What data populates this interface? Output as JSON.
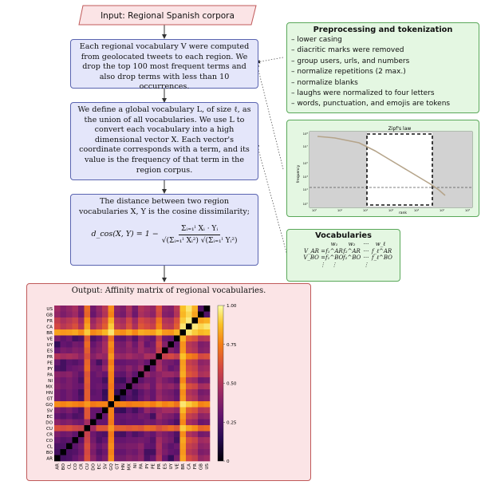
{
  "input": {
    "label": "Input: Regional Spanish corpora"
  },
  "step1": {
    "text": "Each regional vocabulary V were computed from geolocated tweets to each region. We drop the top 100 most frequent terms and also drop terms with less than 10 occurrences."
  },
  "step2": {
    "text": "We define a global vocabulary L, of size ℓ, as the union of all vocabularies. We use L to convert each vocabulary into a high dimensional vector X. Each vector's coordinate corresponds with a term, and its value is the frequency of that term in the region corpus."
  },
  "step3": {
    "text": "The distance between two region vocabularies X, Y is the cosine dissimilarity;",
    "formula_lhs": "d_cos(X, Y) = 1 −",
    "numerator": "Σᵢ₌₁ˡ Xᵢ · Yᵢ",
    "denominator": "√(Σᵢ₌₁ˡ Xᵢ²) √(Σᵢ₌₁ˡ Yᵢ²)"
  },
  "preprocessing": {
    "title": "Preprocessing and tokenization",
    "items": [
      "– lower casing",
      "– diacritic marks were removed",
      "– group users, urls, and numbers",
      "– normalize repetitions (2 max.)",
      "– normalize blanks",
      "– laughs were normalized to four letters",
      "– words, punctuation, and emojis are tokens"
    ]
  },
  "zipf": {
    "title": "Zipf's law",
    "ylabel": "frequency",
    "xlabel": "rank",
    "xticks": [
      "10⁰",
      "10¹",
      "10²",
      "10³",
      "10⁴",
      "10⁵",
      "10⁶"
    ],
    "yticks": [
      "10⁸",
      "10⁷",
      "10⁵",
      "10³",
      "10¹",
      "10⁰"
    ]
  },
  "vocabularies": {
    "title": "Vocabularies",
    "header": [
      "w₁",
      "w₂",
      "···",
      "w_ℓ"
    ],
    "rows": [
      {
        "label": "V_AR =",
        "cells": [
          "f₁^AR",
          "f₂^AR",
          "···",
          "f_ℓ^AR"
        ]
      },
      {
        "label": "V_BO =",
        "cells": [
          "f₁^BO",
          "f₂^BO",
          "···",
          "f_ℓ^BO"
        ]
      },
      {
        "label": "⋮",
        "cells": [
          "⋮",
          "",
          "⋮",
          ""
        ]
      }
    ]
  },
  "output": {
    "title": "Output: Affinity matrix of regional vocabularies.",
    "rows_top_down": [
      "US",
      "GB",
      "FR",
      "CA",
      "BR",
      "VE",
      "UY",
      "ES",
      "PR",
      "PE",
      "PY",
      "PA",
      "NI",
      "MX",
      "HN",
      "GT",
      "GQ",
      "SV",
      "EC",
      "DO",
      "CU",
      "CR",
      "CO",
      "CL",
      "BO",
      "AR"
    ],
    "cols_left_right": [
      "AR",
      "BO",
      "CL",
      "CO",
      "CR",
      "CU",
      "DO",
      "EC",
      "SV",
      "GQ",
      "GT",
      "HN",
      "MX",
      "NI",
      "PA",
      "PY",
      "PE",
      "PR",
      "ES",
      "UY",
      "VE",
      "BR",
      "CA",
      "FR",
      "GB",
      "US"
    ],
    "colorbar_ticks": [
      "1.00",
      "0.75",
      "0.50",
      "0.25",
      "0"
    ]
  },
  "chart_data": {
    "type": "heatmap",
    "title": "Output: Affinity matrix of regional vocabularies.",
    "x": [
      "AR",
      "BO",
      "CL",
      "CO",
      "CR",
      "CU",
      "DO",
      "EC",
      "SV",
      "GQ",
      "GT",
      "HN",
      "MX",
      "NI",
      "PA",
      "PY",
      "PE",
      "PR",
      "ES",
      "UY",
      "VE",
      "BR",
      "CA",
      "FR",
      "GB",
      "US"
    ],
    "y_top_to_bottom": [
      "US",
      "GB",
      "FR",
      "CA",
      "BR",
      "VE",
      "UY",
      "ES",
      "PR",
      "PE",
      "PY",
      "PA",
      "NI",
      "MX",
      "HN",
      "GT",
      "GQ",
      "SV",
      "EC",
      "DO",
      "CU",
      "CR",
      "CO",
      "CL",
      "BO",
      "AR"
    ],
    "colorbar_range": [
      0,
      1
    ],
    "values": [
      [
        0.45,
        0.38,
        0.42,
        0.47,
        0.35,
        0.7,
        0.33,
        0.42,
        0.52,
        0.78,
        0.4,
        0.36,
        0.48,
        0.34,
        0.5,
        0.46,
        0.42,
        0.62,
        0.4,
        0.38,
        0.52,
        0.88,
        0.95,
        0.85,
        0.25,
        0.0
      ],
      [
        0.42,
        0.36,
        0.4,
        0.45,
        0.33,
        0.68,
        0.31,
        0.4,
        0.5,
        0.76,
        0.38,
        0.34,
        0.46,
        0.32,
        0.48,
        0.44,
        0.4,
        0.6,
        0.38,
        0.36,
        0.5,
        0.86,
        0.92,
        0.82,
        0.0,
        0.25
      ],
      [
        0.55,
        0.48,
        0.52,
        0.57,
        0.45,
        0.78,
        0.43,
        0.52,
        0.62,
        0.85,
        0.5,
        0.46,
        0.58,
        0.44,
        0.6,
        0.56,
        0.52,
        0.72,
        0.5,
        0.48,
        0.62,
        0.9,
        0.96,
        0.0,
        0.82,
        0.85
      ],
      [
        0.6,
        0.52,
        0.56,
        0.62,
        0.5,
        0.82,
        0.47,
        0.56,
        0.66,
        0.9,
        0.54,
        0.5,
        0.62,
        0.48,
        0.64,
        0.6,
        0.56,
        0.76,
        0.54,
        0.52,
        0.66,
        0.95,
        0.0,
        0.96,
        0.92,
        0.95
      ],
      [
        0.82,
        0.8,
        0.81,
        0.83,
        0.78,
        0.9,
        0.77,
        0.8,
        0.86,
        0.95,
        0.8,
        0.78,
        0.83,
        0.77,
        0.84,
        0.82,
        0.81,
        0.88,
        0.8,
        0.79,
        0.85,
        0.0,
        0.95,
        0.9,
        0.86,
        0.88
      ],
      [
        0.35,
        0.28,
        0.32,
        0.22,
        0.25,
        0.65,
        0.24,
        0.3,
        0.42,
        0.72,
        0.3,
        0.28,
        0.36,
        0.26,
        0.4,
        0.34,
        0.3,
        0.55,
        0.32,
        0.3,
        0.0,
        0.85,
        0.66,
        0.62,
        0.5,
        0.52
      ],
      [
        0.18,
        0.3,
        0.28,
        0.34,
        0.32,
        0.7,
        0.3,
        0.36,
        0.46,
        0.78,
        0.36,
        0.34,
        0.42,
        0.32,
        0.44,
        0.3,
        0.34,
        0.6,
        0.38,
        0.0,
        0.3,
        0.79,
        0.52,
        0.48,
        0.36,
        0.38
      ],
      [
        0.3,
        0.36,
        0.34,
        0.38,
        0.36,
        0.66,
        0.34,
        0.38,
        0.46,
        0.76,
        0.38,
        0.36,
        0.4,
        0.36,
        0.44,
        0.38,
        0.36,
        0.56,
        0.0,
        0.38,
        0.32,
        0.8,
        0.54,
        0.5,
        0.38,
        0.4
      ],
      [
        0.5,
        0.46,
        0.48,
        0.46,
        0.4,
        0.62,
        0.38,
        0.44,
        0.42,
        0.8,
        0.44,
        0.42,
        0.46,
        0.42,
        0.4,
        0.48,
        0.46,
        0.0,
        0.56,
        0.6,
        0.55,
        0.88,
        0.76,
        0.72,
        0.6,
        0.62
      ],
      [
        0.3,
        0.22,
        0.28,
        0.26,
        0.3,
        0.68,
        0.32,
        0.22,
        0.36,
        0.75,
        0.3,
        0.3,
        0.32,
        0.32,
        0.36,
        0.3,
        0.0,
        0.46,
        0.36,
        0.34,
        0.3,
        0.81,
        0.56,
        0.52,
        0.4,
        0.42
      ],
      [
        0.24,
        0.22,
        0.3,
        0.32,
        0.34,
        0.7,
        0.34,
        0.32,
        0.42,
        0.78,
        0.36,
        0.34,
        0.4,
        0.34,
        0.42,
        0.0,
        0.3,
        0.48,
        0.38,
        0.3,
        0.34,
        0.82,
        0.6,
        0.56,
        0.44,
        0.46
      ],
      [
        0.4,
        0.38,
        0.4,
        0.34,
        0.28,
        0.64,
        0.3,
        0.34,
        0.3,
        0.76,
        0.3,
        0.28,
        0.36,
        0.28,
        0.0,
        0.42,
        0.36,
        0.4,
        0.44,
        0.44,
        0.4,
        0.84,
        0.64,
        0.6,
        0.48,
        0.5
      ],
      [
        0.36,
        0.32,
        0.36,
        0.32,
        0.24,
        0.66,
        0.3,
        0.3,
        0.22,
        0.76,
        0.22,
        0.2,
        0.32,
        0.0,
        0.28,
        0.34,
        0.32,
        0.42,
        0.36,
        0.32,
        0.26,
        0.77,
        0.48,
        0.44,
        0.32,
        0.34
      ],
      [
        0.38,
        0.34,
        0.36,
        0.32,
        0.3,
        0.64,
        0.3,
        0.32,
        0.28,
        0.74,
        0.26,
        0.28,
        0.0,
        0.32,
        0.36,
        0.4,
        0.32,
        0.46,
        0.4,
        0.42,
        0.36,
        0.83,
        0.62,
        0.58,
        0.46,
        0.48
      ],
      [
        0.34,
        0.3,
        0.34,
        0.3,
        0.22,
        0.66,
        0.28,
        0.3,
        0.18,
        0.76,
        0.18,
        0.0,
        0.28,
        0.2,
        0.28,
        0.34,
        0.3,
        0.42,
        0.36,
        0.34,
        0.28,
        0.78,
        0.5,
        0.46,
        0.34,
        0.36
      ],
      [
        0.34,
        0.3,
        0.34,
        0.3,
        0.24,
        0.66,
        0.3,
        0.3,
        0.2,
        0.76,
        0.0,
        0.18,
        0.26,
        0.22,
        0.3,
        0.36,
        0.3,
        0.44,
        0.38,
        0.36,
        0.3,
        0.8,
        0.54,
        0.5,
        0.38,
        0.4
      ],
      [
        0.78,
        0.76,
        0.78,
        0.76,
        0.74,
        0.8,
        0.74,
        0.76,
        0.76,
        0.0,
        0.76,
        0.76,
        0.74,
        0.76,
        0.76,
        0.78,
        0.75,
        0.8,
        0.76,
        0.78,
        0.72,
        0.95,
        0.9,
        0.85,
        0.76,
        0.78
      ],
      [
        0.36,
        0.32,
        0.36,
        0.3,
        0.24,
        0.64,
        0.3,
        0.3,
        0.0,
        0.76,
        0.2,
        0.18,
        0.28,
        0.22,
        0.3,
        0.42,
        0.36,
        0.42,
        0.46,
        0.46,
        0.42,
        0.86,
        0.66,
        0.62,
        0.5,
        0.52
      ],
      [
        0.3,
        0.26,
        0.3,
        0.24,
        0.26,
        0.64,
        0.3,
        0.0,
        0.3,
        0.76,
        0.3,
        0.3,
        0.32,
        0.3,
        0.34,
        0.32,
        0.22,
        0.44,
        0.38,
        0.36,
        0.3,
        0.8,
        0.56,
        0.52,
        0.4,
        0.42
      ],
      [
        0.4,
        0.36,
        0.38,
        0.34,
        0.32,
        0.46,
        0.0,
        0.3,
        0.3,
        0.74,
        0.3,
        0.28,
        0.3,
        0.3,
        0.3,
        0.34,
        0.32,
        0.38,
        0.34,
        0.3,
        0.24,
        0.77,
        0.47,
        0.43,
        0.31,
        0.33
      ],
      [
        0.62,
        0.6,
        0.62,
        0.58,
        0.56,
        0.0,
        0.46,
        0.64,
        0.64,
        0.8,
        0.66,
        0.66,
        0.64,
        0.66,
        0.64,
        0.7,
        0.68,
        0.62,
        0.66,
        0.7,
        0.65,
        0.9,
        0.82,
        0.78,
        0.68,
        0.7
      ],
      [
        0.36,
        0.32,
        0.34,
        0.28,
        0.0,
        0.56,
        0.32,
        0.26,
        0.24,
        0.74,
        0.24,
        0.22,
        0.3,
        0.24,
        0.28,
        0.34,
        0.3,
        0.4,
        0.36,
        0.32,
        0.25,
        0.78,
        0.5,
        0.45,
        0.33,
        0.35
      ],
      [
        0.3,
        0.26,
        0.28,
        0.0,
        0.28,
        0.58,
        0.34,
        0.24,
        0.3,
        0.76,
        0.3,
        0.3,
        0.32,
        0.32,
        0.34,
        0.32,
        0.26,
        0.46,
        0.38,
        0.34,
        0.22,
        0.83,
        0.62,
        0.57,
        0.45,
        0.47
      ],
      [
        0.24,
        0.24,
        0.0,
        0.28,
        0.34,
        0.62,
        0.38,
        0.3,
        0.36,
        0.78,
        0.34,
        0.34,
        0.36,
        0.36,
        0.4,
        0.3,
        0.28,
        0.48,
        0.34,
        0.28,
        0.32,
        0.81,
        0.56,
        0.52,
        0.4,
        0.42
      ],
      [
        0.22,
        0.0,
        0.24,
        0.26,
        0.32,
        0.6,
        0.36,
        0.26,
        0.32,
        0.76,
        0.3,
        0.3,
        0.34,
        0.32,
        0.38,
        0.22,
        0.22,
        0.46,
        0.36,
        0.3,
        0.28,
        0.8,
        0.52,
        0.48,
        0.36,
        0.38
      ],
      [
        0.0,
        0.22,
        0.24,
        0.3,
        0.36,
        0.62,
        0.4,
        0.3,
        0.36,
        0.78,
        0.34,
        0.34,
        0.38,
        0.36,
        0.4,
        0.24,
        0.3,
        0.5,
        0.3,
        0.18,
        0.35,
        0.82,
        0.6,
        0.55,
        0.42,
        0.45
      ]
    ]
  }
}
